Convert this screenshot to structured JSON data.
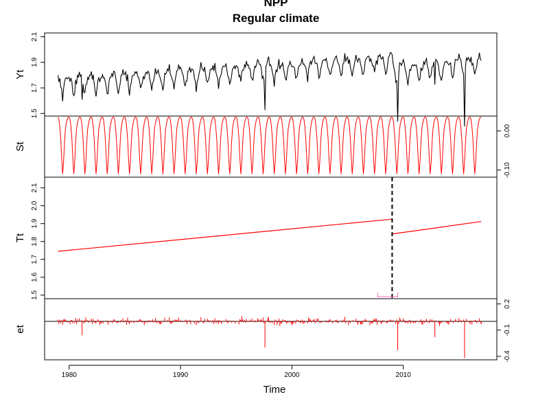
{
  "chart_data": {
    "type": "line",
    "title": "NPP",
    "subtitle": "Regular climate",
    "xlabel": "Time",
    "xlim": [
      1977.8,
      2018.4
    ],
    "x_ticks": [
      1980,
      1990,
      2000,
      2010
    ],
    "x_tick_labels": [
      "1980",
      "1990",
      "2000",
      "2010"
    ],
    "time": {
      "start": 1979.0,
      "end": 2017.0,
      "frequency": 12
    },
    "colors": {
      "observed": "#000000",
      "component": "#ff0000",
      "break_line": "#000000",
      "ci": "#ff69b4"
    },
    "panels": [
      {
        "name": "Yt",
        "ylabel": "Yt",
        "ylim": [
          1.48,
          2.13
        ],
        "y_ticks": [
          1.5,
          1.7,
          1.9,
          2.1
        ],
        "y_tick_labels": [
          "1.5",
          "1.7",
          "1.9",
          "2.1"
        ],
        "axis_side": "left",
        "series": "observed"
      },
      {
        "name": "St",
        "ylabel": "St",
        "ylim": [
          -0.118,
          0.038
        ],
        "y_ticks": [
          -0.1,
          0.0
        ],
        "y_tick_labels": [
          "-0.10",
          "0.00"
        ],
        "axis_side": "right",
        "seasonal": [
          0.035,
          0.03,
          0.01,
          -0.02,
          -0.07,
          -0.11,
          -0.08,
          -0.03,
          0.005,
          0.02,
          0.03,
          0.035
        ]
      },
      {
        "name": "Tt",
        "ylabel": "Tt",
        "ylim": [
          1.48,
          2.16
        ],
        "y_ticks": [
          1.5,
          1.6,
          1.7,
          1.8,
          1.9,
          2.0,
          2.1
        ],
        "y_tick_labels": [
          "1.5",
          "1.6",
          "1.7",
          "1.8",
          "1.9",
          "2.0",
          "2.1"
        ],
        "axis_side": "left",
        "trend_segments": [
          {
            "x": [
              1979.0,
              2009.0
            ],
            "y": [
              1.745,
              1.925
            ]
          },
          {
            "x": [
              2009.0,
              2017.0
            ],
            "y": [
              1.842,
              1.912
            ]
          }
        ],
        "breakpoint": 2009.0,
        "breakpoint_ci": [
          2007.7,
          2009.5
        ]
      },
      {
        "name": "et",
        "ylabel": "et",
        "ylim": [
          -0.44,
          0.26
        ],
        "y_ticks": [
          -0.4,
          -0.1,
          0.2
        ],
        "y_tick_labels": [
          "-0.4",
          "-0.1",
          "0.2"
        ],
        "axis_side": "right",
        "series": "remainder"
      }
    ]
  }
}
